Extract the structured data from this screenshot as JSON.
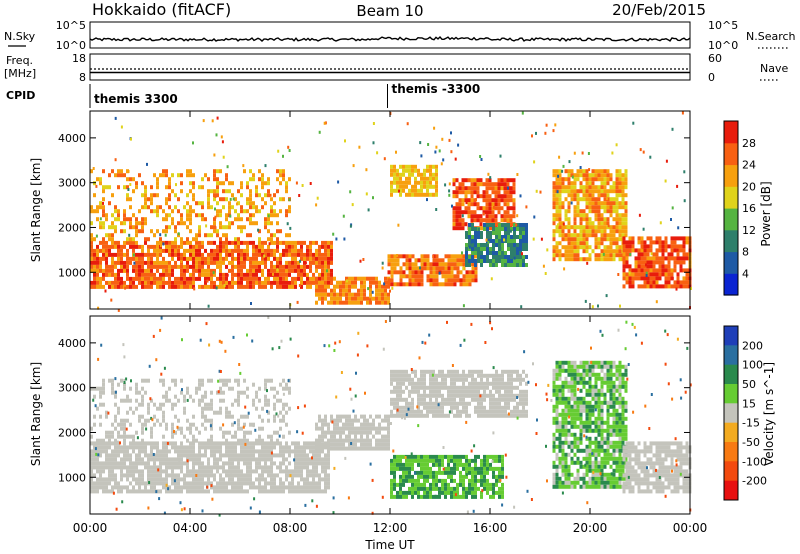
{
  "header": {
    "station": "Hokkaido (fitACF)",
    "beam": "Beam 10",
    "date": "20/Feb/2015"
  },
  "top_panels": {
    "nsky": {
      "label": "N.Sky",
      "ticks": [
        "10^5",
        "10^0"
      ],
      "right_label": "N.Search",
      "right_ticks": [
        "10^5",
        "10^0"
      ]
    },
    "freq": {
      "label_line1": "Freq.",
      "label_line2": "[MHz]",
      "ticks": [
        "18",
        "8"
      ],
      "right_label": "Nave",
      "right_ticks": [
        "60",
        "0"
      ]
    },
    "cpid": {
      "label": "CPID",
      "segments": [
        {
          "label": "themis 3300",
          "start_hour": 0
        },
        {
          "label": "themis -3300",
          "start_hour": 11.9
        }
      ]
    }
  },
  "chart_data": [
    {
      "type": "heatmap",
      "name": "power-panel",
      "ylabel": "Slant Range [km]",
      "xlabel": "",
      "xlim": [
        0,
        24
      ],
      "ylim": [
        180,
        4600
      ],
      "y_ticks": [
        1000,
        2000,
        3000,
        4000
      ],
      "colorbar": {
        "label": "Power [dB]",
        "ticks": [
          4,
          8,
          12,
          16,
          20,
          24,
          28
        ],
        "range": [
          0,
          32
        ],
        "colors": [
          "#0a24d2",
          "#1e5aa5",
          "#2e7f6b",
          "#55b441",
          "#e0d31b",
          "#f7a00e",
          "#f86012",
          "#e81c0c"
        ]
      },
      "regions": [
        {
          "t": [
            0,
            9.7
          ],
          "r": [
            700,
            1700
          ],
          "level": 26
        },
        {
          "t": [
            0,
            8.0
          ],
          "r": [
            1700,
            3300
          ],
          "level": 22,
          "density": 0.35
        },
        {
          "t": [
            9.0,
            12.0
          ],
          "r": [
            300,
            900
          ],
          "level": 24
        },
        {
          "t": [
            11.9,
            15.5
          ],
          "r": [
            700,
            1400
          ],
          "level": 25
        },
        {
          "t": [
            12.0,
            13.8
          ],
          "r": [
            2700,
            3400
          ],
          "level": 20
        },
        {
          "t": [
            14.5,
            17.0
          ],
          "r": [
            2000,
            3100
          ],
          "level": 27
        },
        {
          "t": [
            15.0,
            17.5
          ],
          "r": [
            1200,
            2100
          ],
          "level": 10
        },
        {
          "t": [
            18.5,
            21.5
          ],
          "r": [
            1300,
            3300
          ],
          "level": 22
        },
        {
          "t": [
            21.3,
            24.0
          ],
          "r": [
            700,
            1800
          ],
          "level": 27
        }
      ]
    },
    {
      "type": "heatmap",
      "name": "velocity-panel",
      "ylabel": "Slant Range [km]",
      "xlabel": "Time UT",
      "xlim": [
        0,
        24
      ],
      "ylim": [
        180,
        4600
      ],
      "x_ticks": [
        "00:00",
        "04:00",
        "08:00",
        "12:00",
        "16:00",
        "20:00",
        "00:00"
      ],
      "x_tick_hours": [
        0,
        4,
        8,
        12,
        16,
        20,
        24
      ],
      "y_ticks": [
        1000,
        2000,
        3000,
        4000
      ],
      "colorbar": {
        "label": "Velocity [m s^-1]",
        "ticks": [
          200,
          100,
          50,
          15,
          -15,
          -50,
          -100,
          -200
        ],
        "colors": [
          "#1f3fb8",
          "#2a6fa0",
          "#2a8a4d",
          "#66cc33",
          "#c4c4bc",
          "#f3ab20",
          "#f87a12",
          "#f34a0e",
          "#e81010"
        ]
      },
      "regions": [
        {
          "t": [
            0,
            9.5
          ],
          "r": [
            700,
            1800
          ],
          "value": 0
        },
        {
          "t": [
            0,
            8.0
          ],
          "r": [
            1800,
            3200
          ],
          "value": 0,
          "density": 0.3
        },
        {
          "t": [
            9.0,
            12.0
          ],
          "r": [
            1600,
            2400
          ],
          "value": 0
        },
        {
          "t": [
            12.0,
            16.5
          ],
          "r": [
            600,
            1500
          ],
          "value": 30
        },
        {
          "t": [
            12.0,
            17.5
          ],
          "r": [
            2400,
            3400
          ],
          "value": 0
        },
        {
          "t": [
            18.5,
            21.5
          ],
          "r": [
            800,
            3600
          ],
          "value": 25
        },
        {
          "t": [
            21.3,
            24.0
          ],
          "r": [
            700,
            1800
          ],
          "value": 0
        }
      ]
    }
  ]
}
